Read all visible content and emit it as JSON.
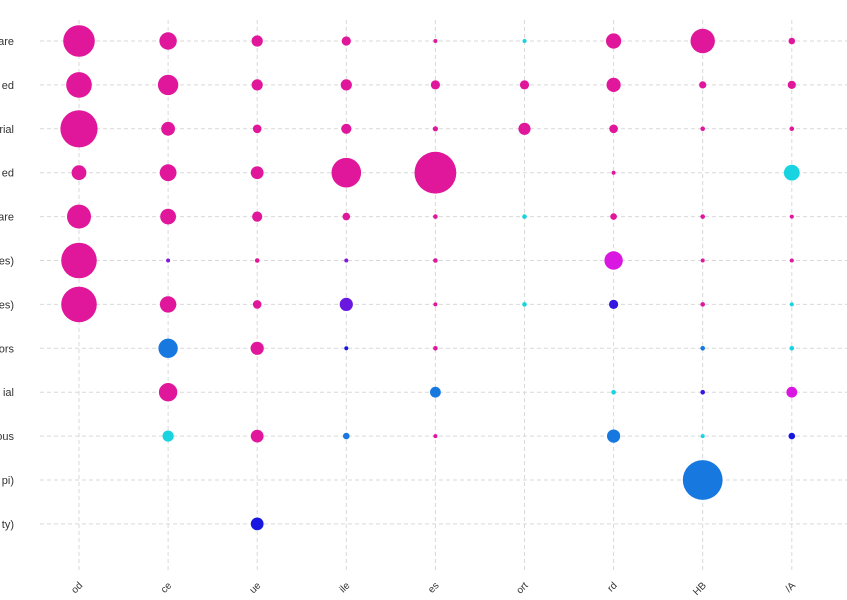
{
  "chart_data": {
    "type": "scatter",
    "title": "",
    "xlabel": "",
    "ylabel": "",
    "grid": true,
    "legend": "none",
    "size_encoding": "relative magnitude 0-1",
    "color_encoding": "categorical scale (pink/magenta, violet, blue, cyan)",
    "columns": [
      "od",
      "ce",
      "ue",
      "ile",
      "es",
      "ort",
      "rd",
      "HB",
      "/A"
    ],
    "rows": [
      "are",
      "ed",
      "rial",
      "ed",
      "are",
      "es)",
      "es)",
      "ors",
      "ial",
      "ous",
      "pi)",
      "ty)"
    ],
    "points": [
      {
        "row": 0,
        "col": 0,
        "size": 0.62,
        "color": "#e0179b"
      },
      {
        "row": 0,
        "col": 1,
        "size": 0.34,
        "color": "#e0179b"
      },
      {
        "row": 0,
        "col": 2,
        "size": 0.22,
        "color": "#e0179b"
      },
      {
        "row": 0,
        "col": 3,
        "size": 0.18,
        "color": "#e0179b"
      },
      {
        "row": 0,
        "col": 4,
        "size": 0.07,
        "color": "#e0179b"
      },
      {
        "row": 0,
        "col": 5,
        "size": 0.06,
        "color": "#17d4e0"
      },
      {
        "row": 0,
        "col": 6,
        "size": 0.3,
        "color": "#e0179b"
      },
      {
        "row": 0,
        "col": 7,
        "size": 0.48,
        "color": "#e0179b"
      },
      {
        "row": 0,
        "col": 8,
        "size": 0.13,
        "color": "#e0179b"
      },
      {
        "row": 1,
        "col": 0,
        "size": 0.5,
        "color": "#e0179b"
      },
      {
        "row": 1,
        "col": 1,
        "size": 0.4,
        "color": "#e0179b"
      },
      {
        "row": 1,
        "col": 2,
        "size": 0.22,
        "color": "#e0179b"
      },
      {
        "row": 1,
        "col": 3,
        "size": 0.22,
        "color": "#e0179b"
      },
      {
        "row": 1,
        "col": 4,
        "size": 0.18,
        "color": "#e0179b"
      },
      {
        "row": 1,
        "col": 5,
        "size": 0.18,
        "color": "#e0179b"
      },
      {
        "row": 1,
        "col": 6,
        "size": 0.28,
        "color": "#e0179b"
      },
      {
        "row": 1,
        "col": 7,
        "size": 0.14,
        "color": "#e0179b"
      },
      {
        "row": 1,
        "col": 8,
        "size": 0.16,
        "color": "#e0179b"
      },
      {
        "row": 2,
        "col": 0,
        "size": 0.73,
        "color": "#e0179b"
      },
      {
        "row": 2,
        "col": 1,
        "size": 0.27,
        "color": "#e0179b"
      },
      {
        "row": 2,
        "col": 2,
        "size": 0.17,
        "color": "#e0179b"
      },
      {
        "row": 2,
        "col": 3,
        "size": 0.2,
        "color": "#e0179b"
      },
      {
        "row": 2,
        "col": 4,
        "size": 0.1,
        "color": "#e0179b"
      },
      {
        "row": 2,
        "col": 5,
        "size": 0.24,
        "color": "#e0179b"
      },
      {
        "row": 2,
        "col": 6,
        "size": 0.17,
        "color": "#e0179b"
      },
      {
        "row": 2,
        "col": 7,
        "size": 0.09,
        "color": "#e0179b"
      },
      {
        "row": 2,
        "col": 8,
        "size": 0.09,
        "color": "#e0179b"
      },
      {
        "row": 3,
        "col": 0,
        "size": 0.29,
        "color": "#e0179b"
      },
      {
        "row": 3,
        "col": 1,
        "size": 0.33,
        "color": "#e0179b"
      },
      {
        "row": 3,
        "col": 2,
        "size": 0.25,
        "color": "#e0179b"
      },
      {
        "row": 3,
        "col": 3,
        "size": 0.58,
        "color": "#e0179b"
      },
      {
        "row": 3,
        "col": 4,
        "size": 0.82,
        "color": "#e0179b"
      },
      {
        "row": 3,
        "col": 6,
        "size": 0.05,
        "color": "#e0179b"
      },
      {
        "row": 3,
        "col": 8,
        "size": 0.31,
        "color": "#17d4e0"
      },
      {
        "row": 4,
        "col": 0,
        "size": 0.47,
        "color": "#e0179b"
      },
      {
        "row": 4,
        "col": 1,
        "size": 0.31,
        "color": "#e0179b"
      },
      {
        "row": 4,
        "col": 2,
        "size": 0.2,
        "color": "#e0179b"
      },
      {
        "row": 4,
        "col": 3,
        "size": 0.15,
        "color": "#e0179b"
      },
      {
        "row": 4,
        "col": 4,
        "size": 0.09,
        "color": "#e0179b"
      },
      {
        "row": 4,
        "col": 5,
        "size": 0.09,
        "color": "#17d4e0"
      },
      {
        "row": 4,
        "col": 6,
        "size": 0.13,
        "color": "#e0179b"
      },
      {
        "row": 4,
        "col": 7,
        "size": 0.09,
        "color": "#e0179b"
      },
      {
        "row": 4,
        "col": 8,
        "size": 0.08,
        "color": "#e0179b"
      },
      {
        "row": 5,
        "col": 0,
        "size": 0.7,
        "color": "#e0179b"
      },
      {
        "row": 5,
        "col": 1,
        "size": 0.08,
        "color": "#8317e0"
      },
      {
        "row": 5,
        "col": 2,
        "size": 0.09,
        "color": "#e0179b"
      },
      {
        "row": 5,
        "col": 3,
        "size": 0.08,
        "color": "#8317e0"
      },
      {
        "row": 5,
        "col": 4,
        "size": 0.09,
        "color": "#e0179b"
      },
      {
        "row": 5,
        "col": 6,
        "size": 0.36,
        "color": "#d917e0"
      },
      {
        "row": 5,
        "col": 7,
        "size": 0.05,
        "color": "#e0179b"
      },
      {
        "row": 5,
        "col": 8,
        "size": 0.08,
        "color": "#e0179b"
      },
      {
        "row": 6,
        "col": 0,
        "size": 0.7,
        "color": "#e0179b"
      },
      {
        "row": 6,
        "col": 1,
        "size": 0.32,
        "color": "#e0179b"
      },
      {
        "row": 6,
        "col": 2,
        "size": 0.17,
        "color": "#e0179b"
      },
      {
        "row": 6,
        "col": 3,
        "size": 0.26,
        "color": "#6a17e0"
      },
      {
        "row": 6,
        "col": 4,
        "size": 0.05,
        "color": "#e0179b"
      },
      {
        "row": 6,
        "col": 5,
        "size": 0.09,
        "color": "#17d4e0"
      },
      {
        "row": 6,
        "col": 6,
        "size": 0.18,
        "color": "#3417e0"
      },
      {
        "row": 6,
        "col": 7,
        "size": 0.09,
        "color": "#e0179b"
      },
      {
        "row": 6,
        "col": 8,
        "size": 0.05,
        "color": "#17d4e0"
      },
      {
        "row": 7,
        "col": 1,
        "size": 0.38,
        "color": "#1778e0"
      },
      {
        "row": 7,
        "col": 2,
        "size": 0.26,
        "color": "#e0179b"
      },
      {
        "row": 7,
        "col": 3,
        "size": 0.05,
        "color": "#1717e0"
      },
      {
        "row": 7,
        "col": 4,
        "size": 0.09,
        "color": "#e0179b"
      },
      {
        "row": 7,
        "col": 7,
        "size": 0.09,
        "color": "#1778e0"
      },
      {
        "row": 7,
        "col": 8,
        "size": 0.09,
        "color": "#17d4e0"
      },
      {
        "row": 8,
        "col": 1,
        "size": 0.36,
        "color": "#e0179b"
      },
      {
        "row": 8,
        "col": 4,
        "size": 0.21,
        "color": "#1778e0"
      },
      {
        "row": 8,
        "col": 6,
        "size": 0.09,
        "color": "#17d4e0"
      },
      {
        "row": 8,
        "col": 7,
        "size": 0.09,
        "color": "#3417e0"
      },
      {
        "row": 8,
        "col": 8,
        "size": 0.21,
        "color": "#d917e0"
      },
      {
        "row": 9,
        "col": 1,
        "size": 0.22,
        "color": "#17d4e0"
      },
      {
        "row": 9,
        "col": 2,
        "size": 0.25,
        "color": "#e0179b"
      },
      {
        "row": 9,
        "col": 3,
        "size": 0.13,
        "color": "#1778e0"
      },
      {
        "row": 9,
        "col": 4,
        "size": 0.05,
        "color": "#e0179b"
      },
      {
        "row": 9,
        "col": 6,
        "size": 0.26,
        "color": "#1778e0"
      },
      {
        "row": 9,
        "col": 7,
        "size": 0.05,
        "color": "#17d4e0"
      },
      {
        "row": 9,
        "col": 8,
        "size": 0.13,
        "color": "#1717e0"
      },
      {
        "row": 10,
        "col": 7,
        "size": 0.78,
        "color": "#1778e0"
      },
      {
        "row": 11,
        "col": 2,
        "size": 0.25,
        "color": "#1717e0"
      }
    ]
  }
}
